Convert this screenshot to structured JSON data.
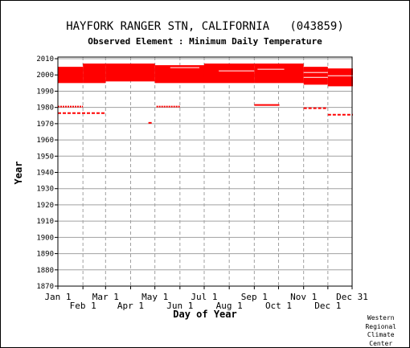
{
  "header": {
    "title": "HAYFORK RANGER STN, CALIFORNIA   (043859)",
    "subtitle": "Observed Element : Minimum Daily Temperature"
  },
  "credit": {
    "line1": "Western",
    "line2": "Regional",
    "line3": "Climate",
    "line4": "Center"
  },
  "chart_data": {
    "type": "scatter",
    "title": "HAYFORK RANGER STN, CALIFORNIA   (043859)",
    "subtitle": "Observed Element : Minimum Daily Temperature",
    "xlabel": "Day of Year",
    "ylabel": "Year",
    "xlim": [
      1,
      365
    ],
    "ylim": [
      1870,
      2011
    ],
    "grid": true,
    "y_ticks": [
      1870,
      1880,
      1890,
      1900,
      1910,
      1920,
      1930,
      1940,
      1950,
      1960,
      1970,
      1980,
      1990,
      2000,
      2010
    ],
    "x_ticks_upper": [
      {
        "label": "Jan 1",
        "day": 1
      },
      {
        "label": "Mar 1",
        "day": 60
      },
      {
        "label": "May 1",
        "day": 121
      },
      {
        "label": "Jul 1",
        "day": 182
      },
      {
        "label": "Sep 1",
        "day": 244
      },
      {
        "label": "Nov 1",
        "day": 305
      },
      {
        "label": "Dec 31",
        "day": 365
      }
    ],
    "x_ticks_lower": [
      {
        "label": "Feb 1",
        "day": 32
      },
      {
        "label": "Apr 1",
        "day": 91
      },
      {
        "label": "Jun 1",
        "day": 152
      },
      {
        "label": "Aug 1",
        "day": 213
      },
      {
        "label": "Oct 1",
        "day": 274
      },
      {
        "label": "Dec 1",
        "day": 335
      }
    ],
    "data_color": "#ff0000",
    "blocks": [
      {
        "start_day": 1,
        "end_day": 31,
        "start_year": 1995,
        "end_year": 2004
      },
      {
        "start_day": 32,
        "end_day": 59,
        "start_year": 1995,
        "end_year": 2006
      },
      {
        "start_day": 60,
        "end_day": 120,
        "start_year": 1996,
        "end_year": 2006
      },
      {
        "start_day": 121,
        "end_day": 181,
        "start_year": 1995,
        "end_year": 2005
      },
      {
        "start_day": 182,
        "end_day": 243,
        "start_year": 1995,
        "end_year": 2006
      },
      {
        "start_day": 244,
        "end_day": 304,
        "start_year": 1995,
        "end_year": 2006
      },
      {
        "start_day": 305,
        "end_day": 334,
        "start_year": 1994,
        "end_year": 2004
      },
      {
        "start_day": 335,
        "end_day": 365,
        "start_year": 1993,
        "end_year": 2003
      }
    ],
    "segments": [
      {
        "year": 1980,
        "start_day": 1,
        "end_day": 31,
        "style": "dotted"
      },
      {
        "year": 1976,
        "start_day": 1,
        "end_day": 59,
        "style": "dashed"
      },
      {
        "year": 1980,
        "start_day": 123,
        "end_day": 151,
        "style": "dotted"
      },
      {
        "year": 1970,
        "start_day": 113,
        "end_day": 116,
        "style": "solid"
      },
      {
        "year": 1981,
        "start_day": 244,
        "end_day": 274,
        "style": "solid"
      },
      {
        "year": 1979,
        "start_day": 305,
        "end_day": 334,
        "style": "dashed"
      },
      {
        "year": 1975,
        "start_day": 335,
        "end_day": 365,
        "style": "dashed"
      }
    ],
    "gaps": [
      {
        "year": 2001,
        "start_day": 305,
        "end_day": 334
      },
      {
        "year": 1998,
        "start_day": 305,
        "end_day": 334
      },
      {
        "year": 1999,
        "start_day": 335,
        "end_day": 365
      },
      {
        "year": 2005,
        "start_day": 1,
        "end_day": 31
      },
      {
        "year": 2002,
        "start_day": 200,
        "end_day": 243
      },
      {
        "year": 2004,
        "start_day": 140,
        "end_day": 175
      },
      {
        "year": 2003,
        "start_day": 248,
        "end_day": 280
      }
    ]
  }
}
